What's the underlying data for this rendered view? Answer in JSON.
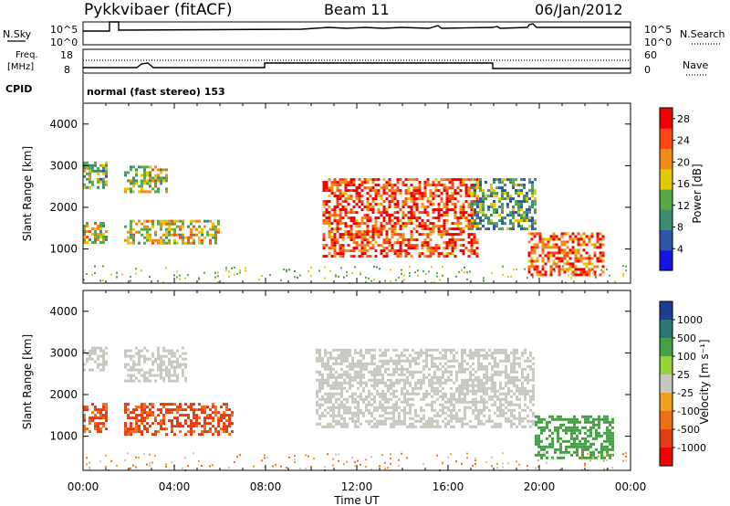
{
  "header": {
    "station": "Pykkvibaer (fitACF)",
    "beam": "Beam 11",
    "date": "06/Jan/2012"
  },
  "status_panels": {
    "nsky_label": "N.Sky",
    "nsearch_label": "N.Search",
    "noise_ticks": [
      "10^5",
      "10^0"
    ],
    "freq_label": "Freq.",
    "freq_unit": "[MHz]",
    "freq_ticks": [
      "18",
      "8"
    ],
    "nave_label": "Nave",
    "nave_ticks": [
      "60",
      "0"
    ],
    "cpid_label": "CPID",
    "cpid_value": "normal (fast stereo) 153"
  },
  "colors": {
    "power_scale": [
      "#1414e6",
      "#2d55a8",
      "#3c8c70",
      "#55aa46",
      "#e6c800",
      "#f08c14",
      "#ff4614",
      "#f00000"
    ],
    "velocity_scale": [
      "#1e3c96",
      "#287878",
      "#46a046",
      "#96d23c",
      "#c8c8c0",
      "#f0a01e",
      "#f06e14",
      "#e63c14",
      "#f00000"
    ]
  },
  "chart_data": [
    {
      "type": "heatmap",
      "panel": "power",
      "ylabel": "Slant Range [km]",
      "y_ticks": [
        "1000",
        "2000",
        "3000",
        "4000"
      ],
      "ylim": [
        180,
        4500
      ],
      "colorbar": {
        "label": "Power [dB]",
        "ticks": [
          "4",
          "8",
          "12",
          "16",
          "20",
          "24",
          "28"
        ],
        "range": [
          0,
          30
        ]
      },
      "regions": [
        {
          "t": [
            0.0,
            1.0
          ],
          "r": [
            2500,
            3100
          ],
          "v": 14
        },
        {
          "t": [
            0.0,
            1.0
          ],
          "r": [
            1150,
            1650
          ],
          "v": 16
        },
        {
          "t": [
            1.8,
            3.7
          ],
          "r": [
            2400,
            3000
          ],
          "v": 16
        },
        {
          "t": [
            1.8,
            6.0
          ],
          "r": [
            1150,
            1700
          ],
          "v": 17
        },
        {
          "t": [
            10.5,
            17.3
          ],
          "r": [
            800,
            2700
          ],
          "v": 25
        },
        {
          "t": [
            17.0,
            19.8
          ],
          "r": [
            1500,
            2700
          ],
          "v": 11
        },
        {
          "t": [
            19.5,
            22.8
          ],
          "r": [
            350,
            1400
          ],
          "v": 24
        }
      ]
    },
    {
      "type": "heatmap",
      "panel": "velocity",
      "xlabel": "Time UT",
      "ylabel": "Slant Range [km]",
      "y_ticks": [
        "1000",
        "2000",
        "3000",
        "4000"
      ],
      "ylim": [
        180,
        4500
      ],
      "x_ticks": [
        "00:00",
        "04:00",
        "08:00",
        "12:00",
        "16:00",
        "20:00",
        "00:00"
      ],
      "colorbar": {
        "label": "Velocity [m s⁻¹]",
        "ticks": [
          "1000",
          "500",
          "100",
          "25",
          "-25",
          "-100",
          "-500",
          "-1000"
        ]
      },
      "regions": [
        {
          "t": [
            0.0,
            1.0
          ],
          "r": [
            2600,
            3150
          ],
          "v": 0
        },
        {
          "t": [
            0.0,
            1.0
          ],
          "r": [
            1100,
            1800
          ],
          "v": -120
        },
        {
          "t": [
            1.8,
            4.5
          ],
          "r": [
            2300,
            3150
          ],
          "v": 0
        },
        {
          "t": [
            1.8,
            6.5
          ],
          "r": [
            1050,
            1800
          ],
          "v": -150
        },
        {
          "t": [
            10.2,
            19.8
          ],
          "r": [
            1200,
            3100
          ],
          "v": 0
        },
        {
          "t": [
            19.8,
            23.2
          ],
          "r": [
            500,
            1500
          ],
          "v": 300
        }
      ]
    }
  ]
}
